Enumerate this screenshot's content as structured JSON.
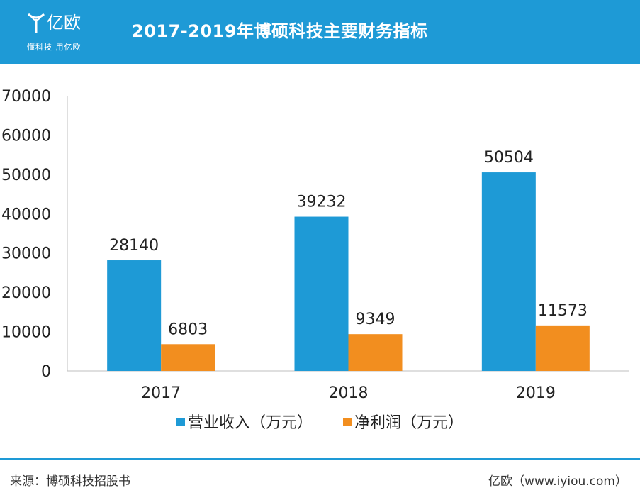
{
  "header": {
    "logo_text": "亿欧",
    "slogan": "懂科技 用亿欧",
    "title": "2017-2019年博硕科技主要财务指标"
  },
  "colors": {
    "header_bg": "#1e9ad6",
    "series_revenue": "#1e9ad6",
    "series_profit": "#f28e1f"
  },
  "chart_data": {
    "type": "bar",
    "categories": [
      "2017",
      "2018",
      "2019"
    ],
    "series": [
      {
        "name": "营业收入（万元）",
        "values": [
          28140,
          39232,
          50504
        ]
      },
      {
        "name": "净利润（万元）",
        "values": [
          6803,
          9349,
          11573
        ]
      }
    ],
    "title": "",
    "xlabel": "",
    "ylabel": "",
    "ylim": [
      0,
      70000
    ],
    "yticks": [
      "0",
      "10000",
      "20000",
      "30000",
      "40000",
      "50000",
      "60000",
      "70000"
    ],
    "grid": false,
    "legend": "bottom"
  },
  "footer": {
    "source": "来源：博硕科技招股书",
    "credit": "亿欧（www.iyiou.com）"
  }
}
